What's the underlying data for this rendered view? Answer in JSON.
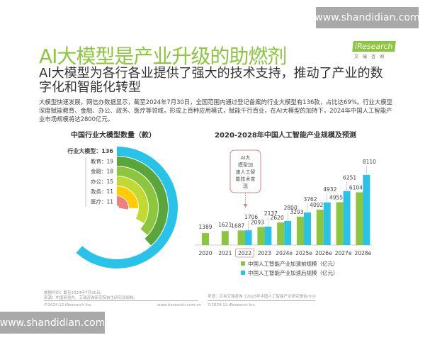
{
  "watermarks": {
    "top": "www.shandidian.com",
    "bottom": "www.shandidian.com"
  },
  "header": {
    "title": "AI大模型是产业升级的助燃剂",
    "subtitle": "AI大模型为各行各业提供了强大的技术支持，推动了产业的数字化和智能化转型",
    "paragraph": "大模型快速发展，网信办数据显示，截至2024年7月30日，全国范围内通过登记备案的行业大模型有136款，占比达69%。行业大模型深度赋能教育、金融、办公、政务、医疗等领域，形成上百种应用模式，赋能千行百业，在AI大模型的加持下，2024年中国人工智能产业市场规模将达2800亿元。",
    "logo": {
      "brand": "iResearch",
      "sub": "艾瑞咨询"
    }
  },
  "footer": {
    "left_note1": "数据时间：截至2024年7月30日。",
    "left_note2": "来源：中国网信办、艾瑞咨询研究院自主研究及绘制。",
    "left_copyright": "©2024.12 iResearch Inc.",
    "left_url": "www.iresearch.com.cn",
    "right_source": "来源：引自艾瑞咨询《2023年中国人工智能产业研究报告(VI)》",
    "right_copyright": "©2024.12 iResearch Inc."
  },
  "chart_data": [
    {
      "type": "radial-bar",
      "title": "中国行业大模型数量（款）",
      "categories": [
        "行业大模型",
        "教育",
        "金融",
        "办公",
        "政务",
        "医疗"
      ],
      "labels": [
        "行业大模型：136",
        "教育：19",
        "金融：18",
        "办公：15",
        "政务：11",
        "医疗：11"
      ],
      "values": [
        136,
        19,
        18,
        15,
        11,
        11
      ],
      "colors": [
        "#29c3ea",
        "#5aa63a",
        "#8cc63f",
        "#c2d931",
        "#ffcc00",
        "#f08080"
      ]
    },
    {
      "type": "bar",
      "title": "2020-2028年中国人工智能产业规模及预测",
      "categories": [
        "2020",
        "2021",
        "2022",
        "2023",
        "2024e",
        "2025e",
        "2026e",
        "2027e",
        "2028e"
      ],
      "highlight_category": "2022",
      "annotation": "AI大模型加速人工智能技术变现",
      "series": [
        {
          "name": "中国人工智能产业加速前规模（亿元）",
          "color": "#8cc63f",
          "values": [
            1389,
            1621,
            1687,
            2093,
            2620,
            3293,
            4092,
            4955,
            6104
          ]
        },
        {
          "name": "中国人工智能产业加速后规模（亿元）",
          "color": "#29c3ea",
          "values": [
            null,
            null,
            1706,
            2137,
            2800,
            3762,
            4932,
            6251,
            8110
          ]
        }
      ]
    }
  ]
}
